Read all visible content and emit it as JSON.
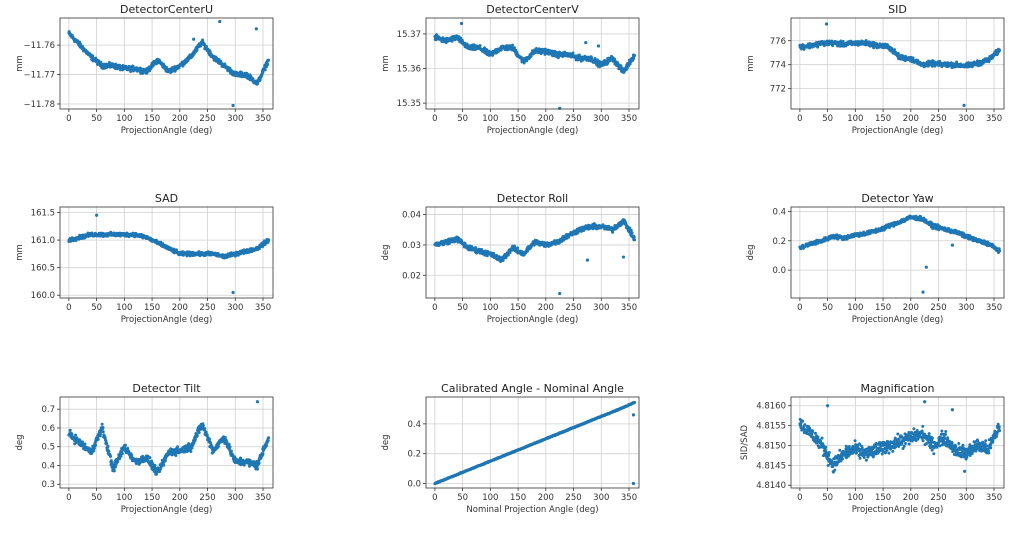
{
  "point_color": "#1f77b4",
  "chart_data": [
    {
      "type": "scatter",
      "title": "DetectorCenterU",
      "xlabel": "ProjectionAngle (deg)",
      "ylabel": "mm",
      "xlim": [
        -16,
        368
      ],
      "xticks": [
        0,
        50,
        100,
        150,
        200,
        250,
        300,
        350
      ],
      "ylim": [
        -11.7817,
        -11.7508
      ],
      "yticks": [
        -11.76,
        -11.77,
        -11.78
      ],
      "ytick_labels": [
        "−11.76",
        "−11.77",
        "−11.78"
      ],
      "trend_step": 20,
      "trend": [
        -11.756,
        -11.76,
        -11.764,
        -11.767,
        -11.767,
        -11.768,
        -11.768,
        -11.769,
        -11.765,
        -11.769,
        -11.767,
        -11.764,
        -11.759,
        -11.764,
        -11.767,
        -11.77,
        -11.77,
        -11.773,
        -11.765
      ],
      "spread": 0.0012,
      "outliers": [
        [
          272,
          -11.752
        ],
        [
          296,
          -11.7805
        ],
        [
          338,
          -11.7545
        ],
        [
          225,
          -11.758
        ]
      ]
    },
    {
      "type": "scatter",
      "title": "DetectorCenterV",
      "xlabel": "ProjectionAngle (deg)",
      "ylabel": "mm",
      "xlim": [
        -16,
        368
      ],
      "xticks": [
        0,
        50,
        100,
        150,
        200,
        250,
        300,
        350
      ],
      "ylim": [
        15.3483,
        15.3746
      ],
      "yticks": [
        15.37,
        15.36,
        15.35
      ],
      "ytick_labels": [
        "15.37",
        "15.36",
        "15.35"
      ],
      "trend_step": 20,
      "trend": [
        15.369,
        15.368,
        15.369,
        15.366,
        15.366,
        15.364,
        15.366,
        15.366,
        15.362,
        15.365,
        15.365,
        15.364,
        15.364,
        15.363,
        15.363,
        15.361,
        15.363,
        15.359,
        15.364
      ],
      "spread": 0.0011,
      "outliers": [
        [
          225,
          15.3485
        ],
        [
          272,
          15.3675
        ],
        [
          295,
          15.3665
        ],
        [
          48,
          15.373
        ]
      ]
    },
    {
      "type": "scatter",
      "title": "SID",
      "xlabel": "ProjectionAngle (deg)",
      "ylabel": "mm",
      "xlim": [
        -16,
        368
      ],
      "xticks": [
        0,
        50,
        100,
        150,
        200,
        250,
        300,
        350
      ],
      "ylim": [
        770.3,
        777.9
      ],
      "yticks": [
        776,
        774,
        772
      ],
      "ytick_labels": [
        "776",
        "774",
        "772"
      ],
      "trend_step": 20,
      "trend": [
        775.5,
        775.6,
        775.8,
        775.8,
        775.7,
        775.8,
        775.8,
        775.6,
        775.5,
        774.6,
        774.5,
        774.0,
        774.1,
        774.0,
        774.0,
        773.9,
        774.1,
        774.4,
        775.2
      ],
      "spread": 0.3,
      "outliers": [
        [
          296,
          770.6
        ],
        [
          48,
          777.4
        ]
      ]
    },
    {
      "type": "scatter",
      "title": "SAD",
      "xlabel": "ProjectionAngle (deg)",
      "ylabel": "mm",
      "xlim": [
        -16,
        368
      ],
      "xticks": [
        0,
        50,
        100,
        150,
        200,
        250,
        300,
        350
      ],
      "ylim": [
        159.95,
        161.6
      ],
      "yticks": [
        161.5,
        161.0,
        160.5,
        160.0
      ],
      "ytick_labels": [
        "161.5",
        "161.0",
        "160.5",
        "160.0"
      ],
      "trend_step": 20,
      "trend": [
        161.0,
        161.05,
        161.1,
        161.1,
        161.1,
        161.1,
        161.1,
        161.05,
        160.95,
        160.85,
        160.75,
        160.75,
        160.75,
        160.75,
        160.7,
        160.75,
        160.8,
        160.85,
        161.0
      ],
      "spread": 0.05,
      "outliers": [
        [
          296,
          160.05
        ],
        [
          50,
          161.45
        ]
      ]
    },
    {
      "type": "scatter",
      "title": "Detector Roll",
      "xlabel": "ProjectionAngle (deg)",
      "ylabel": "deg",
      "xlim": [
        -16,
        368
      ],
      "xticks": [
        0,
        50,
        100,
        150,
        200,
        250,
        300,
        350
      ],
      "ylim": [
        0.0125,
        0.0425
      ],
      "yticks": [
        0.04,
        0.03,
        0.02
      ],
      "ytick_labels": [
        "0.04",
        "0.03",
        "0.02"
      ],
      "trend_step": 20,
      "trend": [
        0.03,
        0.031,
        0.032,
        0.029,
        0.028,
        0.027,
        0.025,
        0.029,
        0.027,
        0.031,
        0.03,
        0.031,
        0.033,
        0.035,
        0.036,
        0.036,
        0.035,
        0.038,
        0.032
      ],
      "spread": 0.0012,
      "outliers": [
        [
          225,
          0.014
        ],
        [
          275,
          0.025
        ],
        [
          340,
          0.026
        ]
      ]
    },
    {
      "type": "scatter",
      "title": "Detector Yaw",
      "xlabel": "ProjectionAngle (deg)",
      "ylabel": "deg",
      "xlim": [
        -16,
        368
      ],
      "xticks": [
        0,
        50,
        100,
        150,
        200,
        250,
        300,
        350
      ],
      "ylim": [
        -0.19,
        0.43
      ],
      "yticks": [
        0.4,
        0.2,
        0.0
      ],
      "ytick_labels": [
        "0.4",
        "0.2",
        "0.0"
      ],
      "trend_step": 20,
      "trend": [
        0.15,
        0.18,
        0.2,
        0.23,
        0.22,
        0.24,
        0.25,
        0.27,
        0.3,
        0.33,
        0.36,
        0.35,
        0.3,
        0.28,
        0.26,
        0.23,
        0.2,
        0.18,
        0.13
      ],
      "spread": 0.02,
      "outliers": [
        [
          222,
          -0.15
        ],
        [
          228,
          0.02
        ],
        [
          275,
          0.17
        ]
      ]
    },
    {
      "type": "scatter",
      "title": "Detector Tilt",
      "xlabel": "ProjectionAngle (deg)",
      "ylabel": "deg",
      "xlim": [
        -16,
        368
      ],
      "xticks": [
        0,
        50,
        100,
        150,
        200,
        250,
        300,
        350
      ],
      "ylim": [
        0.28,
        0.765
      ],
      "yticks": [
        0.7,
        0.6,
        0.5,
        0.4,
        0.3
      ],
      "ytick_labels": [
        "0.7",
        "0.6",
        "0.5",
        "0.4",
        "0.3"
      ],
      "trend_step": 20,
      "trend": [
        0.57,
        0.52,
        0.47,
        0.6,
        0.38,
        0.5,
        0.42,
        0.44,
        0.36,
        0.47,
        0.48,
        0.5,
        0.62,
        0.48,
        0.55,
        0.42,
        0.42,
        0.4,
        0.55
      ],
      "spread": 0.03,
      "outliers": [
        [
          340,
          0.74
        ]
      ]
    },
    {
      "type": "scatter",
      "title": "Calibrated Angle - Nominal Angle",
      "xlabel": "Nominal Projection Angle (deg)",
      "ylabel": "deg",
      "xlim": [
        -16,
        368
      ],
      "xticks": [
        0,
        50,
        100,
        150,
        200,
        250,
        300,
        350
      ],
      "ylim": [
        -0.03,
        0.58
      ],
      "yticks": [
        0.4,
        0.2,
        0.0
      ],
      "ytick_labels": [
        "0.4",
        "0.2",
        "0.0"
      ],
      "trend_step": 20,
      "trend": [
        0,
        0.03,
        0.06,
        0.09,
        0.12,
        0.15,
        0.18,
        0.21,
        0.24,
        0.27,
        0.3,
        0.33,
        0.36,
        0.39,
        0.42,
        0.45,
        0.48,
        0.51,
        0.545
      ],
      "spread": 0.004,
      "outliers": [
        [
          358,
          0.46
        ],
        [
          358,
          0.0
        ]
      ]
    },
    {
      "type": "scatter",
      "title": "Magnification",
      "xlabel": "ProjectionAngle (deg)",
      "ylabel": "SID/SAD",
      "xlim": [
        -16,
        368
      ],
      "xticks": [
        0,
        50,
        100,
        150,
        200,
        250,
        300,
        350
      ],
      "ylim": [
        4.81393,
        4.81622
      ],
      "yticks": [
        4.816,
        4.8155,
        4.815,
        4.8145,
        4.814
      ],
      "ytick_labels": [
        "4.8160",
        "4.8155",
        "4.8150",
        "4.8145",
        "4.8140"
      ],
      "trend_step": 20,
      "trend": [
        4.81555,
        4.8153,
        4.815,
        4.8145,
        4.8148,
        4.8149,
        4.8148,
        4.8149,
        4.815,
        4.8151,
        4.8152,
        4.8153,
        4.815,
        4.8152,
        4.8149,
        4.8148,
        4.815,
        4.8149,
        4.8155
      ],
      "spread": 0.00025,
      "outliers": [
        [
          225,
          4.8161
        ],
        [
          50,
          4.816
        ],
        [
          275,
          4.8159
        ],
        [
          297,
          4.81435
        ]
      ]
    }
  ]
}
